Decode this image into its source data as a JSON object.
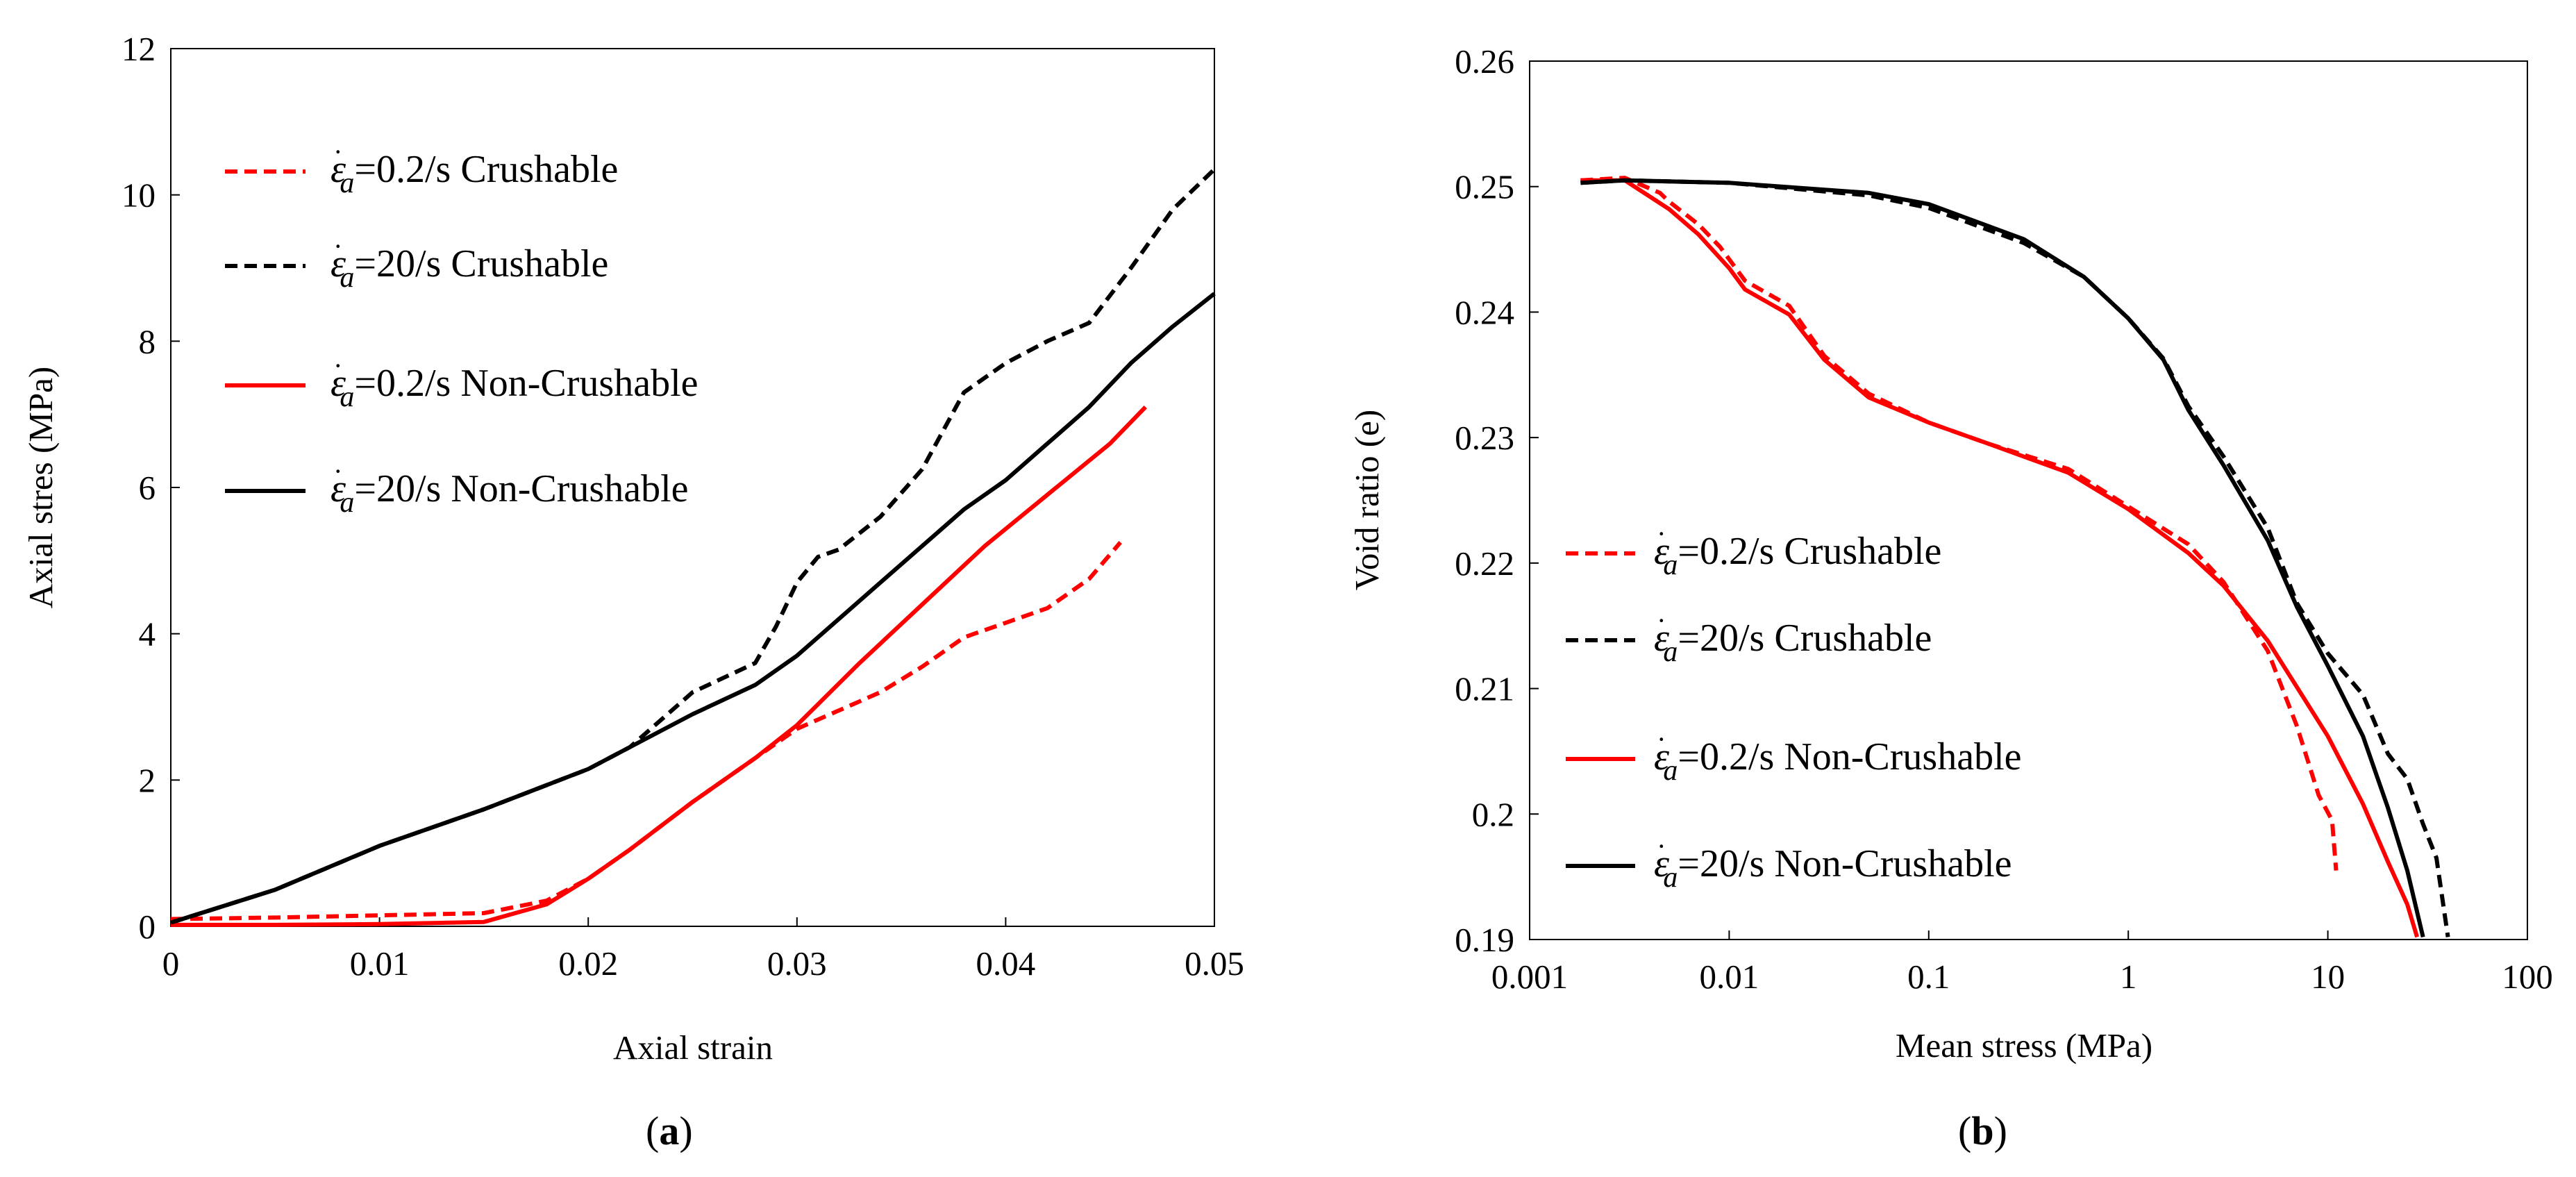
{
  "chart_data": [
    {
      "panel_label": "a",
      "type": "line",
      "title": "",
      "xlabel": "Axial strain",
      "ylabel": "Axial stres (MPa)",
      "xlim": [
        0,
        0.05
      ],
      "ylim": [
        0,
        12
      ],
      "xscale": "linear",
      "xticks": [
        0,
        0.01,
        0.02,
        0.03,
        0.04,
        0.05
      ],
      "xtick_labels": [
        "0",
        "0.01",
        "0.02",
        "0.03",
        "0.04",
        "0.05"
      ],
      "yticks": [
        0,
        2,
        4,
        6,
        8,
        10,
        12
      ],
      "ytick_labels": [
        "0",
        "2",
        "4",
        "6",
        "8",
        "10",
        "12"
      ],
      "grid": false,
      "legend_position": "top-left",
      "series": [
        {
          "name": "=0.2/s Crushable",
          "rate": "0.2/s",
          "material": "Crushable",
          "color": "#ff0000",
          "dash": "dashed",
          "x": [
            0,
            0.005,
            0.01,
            0.015,
            0.018,
            0.02,
            0.022,
            0.025,
            0.028,
            0.03,
            0.032,
            0.034,
            0.036,
            0.038,
            0.04,
            0.042,
            0.044,
            0.0455
          ],
          "y": [
            0.1,
            0.12,
            0.15,
            0.18,
            0.35,
            0.65,
            1.05,
            1.7,
            2.3,
            2.7,
            2.95,
            3.2,
            3.55,
            3.95,
            4.15,
            4.35,
            4.75,
            5.25
          ]
        },
        {
          "name": "=20/s Crushable",
          "rate": "20/s",
          "material": "Crushable",
          "color": "#000000",
          "dash": "dashed",
          "x": [
            0,
            0.005,
            0.01,
            0.015,
            0.02,
            0.022,
            0.025,
            0.028,
            0.029,
            0.03,
            0.031,
            0.032,
            0.034,
            0.036,
            0.038,
            0.04,
            0.042,
            0.044,
            0.046,
            0.048,
            0.05
          ],
          "y": [
            0.05,
            0.5,
            1.1,
            1.6,
            2.15,
            2.45,
            3.2,
            3.6,
            4.1,
            4.7,
            5.05,
            5.15,
            5.6,
            6.25,
            7.3,
            7.7,
            8.0,
            8.25,
            9.0,
            9.8,
            10.35
          ]
        },
        {
          "name": "=0.2/s Non-Crushable",
          "rate": "0.2/s",
          "material": "Non-Crushable",
          "color": "#ff0000",
          "dash": "solid",
          "x": [
            0,
            0.005,
            0.01,
            0.015,
            0.018,
            0.02,
            0.022,
            0.025,
            0.028,
            0.03,
            0.033,
            0.036,
            0.039,
            0.042,
            0.045,
            0.0467
          ],
          "y": [
            0.02,
            0.02,
            0.03,
            0.06,
            0.3,
            0.65,
            1.05,
            1.7,
            2.3,
            2.75,
            3.6,
            4.4,
            5.2,
            5.9,
            6.6,
            7.1
          ]
        },
        {
          "name": "=20/s Non-Crushable",
          "rate": "20/s",
          "material": "Non-Crushable",
          "color": "#000000",
          "dash": "solid",
          "x": [
            0,
            0.005,
            0.01,
            0.015,
            0.02,
            0.022,
            0.025,
            0.028,
            0.03,
            0.032,
            0.034,
            0.036,
            0.038,
            0.04,
            0.042,
            0.044,
            0.046,
            0.048,
            0.05
          ],
          "y": [
            0.05,
            0.5,
            1.1,
            1.6,
            2.15,
            2.45,
            2.9,
            3.3,
            3.7,
            4.2,
            4.7,
            5.2,
            5.7,
            6.1,
            6.6,
            7.1,
            7.7,
            8.2,
            8.65
          ]
        }
      ]
    },
    {
      "panel_label": "b",
      "type": "line",
      "title": "",
      "xlabel": "Mean stress (MPa)",
      "ylabel": "Void ratio (e)",
      "xlim": [
        0.001,
        100
      ],
      "ylim": [
        0.19,
        0.26
      ],
      "xscale": "log",
      "xticks": [
        0.001,
        0.01,
        0.1,
        1,
        10,
        100
      ],
      "xtick_labels": [
        "0.001",
        "0.01",
        "0.1",
        "1",
        "10",
        "100"
      ],
      "yticks": [
        0.19,
        0.2,
        0.21,
        0.22,
        0.23,
        0.24,
        0.25,
        0.26
      ],
      "ytick_labels": [
        "0.19",
        "0.2",
        "0.21",
        "0.22",
        "0.23",
        "0.24",
        "0.25",
        "0.26"
      ],
      "grid": false,
      "legend_position": "bottom-left",
      "series": [
        {
          "name": "=0.2/s Crushable",
          "rate": "0.2/s",
          "material": "Crushable",
          "color": "#ff0000",
          "dash": "dashed",
          "x": [
            0.0018,
            0.003,
            0.0045,
            0.005,
            0.007,
            0.009,
            0.012,
            0.02,
            0.03,
            0.05,
            0.1,
            0.2,
            0.5,
            1,
            2,
            3,
            5,
            7,
            9,
            10.5,
            11
          ],
          "y": [
            0.2505,
            0.2507,
            0.2495,
            0.2488,
            0.247,
            0.2452,
            0.2425,
            0.2405,
            0.2365,
            0.2335,
            0.2312,
            0.2295,
            0.2275,
            0.2245,
            0.2215,
            0.2185,
            0.213,
            0.207,
            0.2015,
            0.1995,
            0.1955
          ]
        },
        {
          "name": "=20/s Crushable",
          "rate": "20/s",
          "material": "Crushable",
          "color": "#000000",
          "dash": "dashed",
          "x": [
            0.0018,
            0.003,
            0.01,
            0.05,
            0.1,
            0.3,
            0.6,
            1,
            1.5,
            2,
            3,
            5,
            7,
            10,
            15,
            20,
            25,
            30,
            35,
            40
          ],
          "y": [
            0.2503,
            0.2505,
            0.2503,
            0.2493,
            0.2483,
            0.2455,
            0.2428,
            0.2395,
            0.2363,
            0.2325,
            0.2285,
            0.2228,
            0.2168,
            0.2128,
            0.2095,
            0.2048,
            0.2028,
            0.1992,
            0.1965,
            0.1902
          ]
        },
        {
          "name": "=0.2/s Non-Crushable",
          "rate": "0.2/s",
          "material": "Non-Crushable",
          "color": "#ff0000",
          "dash": "solid",
          "x": [
            0.0018,
            0.003,
            0.005,
            0.007,
            0.01,
            0.012,
            0.02,
            0.03,
            0.05,
            0.1,
            0.2,
            0.5,
            1,
            2,
            3,
            5,
            10,
            15,
            20,
            25,
            28
          ],
          "y": [
            0.2505,
            0.2505,
            0.2482,
            0.2462,
            0.2435,
            0.2418,
            0.2398,
            0.2362,
            0.2332,
            0.2312,
            0.2295,
            0.2272,
            0.2243,
            0.2208,
            0.2182,
            0.2138,
            0.2062,
            0.2008,
            0.1962,
            0.1928,
            0.1902
          ]
        },
        {
          "name": "=20/s Non-Crushable",
          "rate": "20/s",
          "material": "Non-Crushable",
          "color": "#000000",
          "dash": "solid",
          "x": [
            0.0018,
            0.003,
            0.01,
            0.05,
            0.1,
            0.3,
            0.6,
            1,
            1.5,
            2,
            3,
            5,
            7,
            10,
            15,
            20,
            25,
            30
          ],
          "y": [
            0.2503,
            0.2505,
            0.2503,
            0.2495,
            0.2486,
            0.2458,
            0.2428,
            0.2395,
            0.2362,
            0.2322,
            0.2278,
            0.2218,
            0.2165,
            0.2118,
            0.2062,
            0.2005,
            0.1955,
            0.1902
          ]
        }
      ]
    }
  ],
  "captions": [
    {
      "open": "(",
      "letter": "a",
      "close": ")"
    },
    {
      "open": "(",
      "letter": "b",
      "close": ")"
    }
  ],
  "legend_symbol": {
    "base": "ε",
    "dot": "·",
    "sub": "a"
  }
}
